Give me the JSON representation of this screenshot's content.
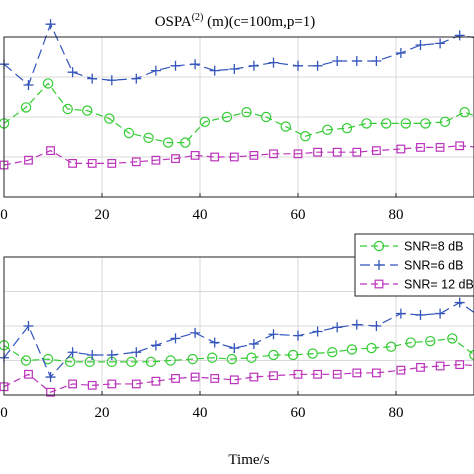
{
  "chart_data": [
    {
      "type": "line",
      "title_main": "OSPA",
      "title_sup": "(2)",
      "title_rest": " (m)(c=100m,p=1)",
      "xlim": [
        0,
        100
      ],
      "ylim": [
        0,
        10
      ],
      "grid": true,
      "x_ticks": [
        0,
        20,
        40,
        60,
        80
      ],
      "x_tick_labels": [
        "0",
        "20",
        "40",
        "60",
        "80"
      ],
      "series": [
        {
          "color": "#33cc33",
          "dash": "dashed",
          "marker": "circle",
          "x": [
            0,
            4.5,
            9,
            13,
            17,
            21.5,
            25.5,
            29.5,
            33.5,
            37,
            41,
            45.5,
            49.5,
            53.5,
            57.5,
            61.5,
            66,
            70,
            74,
            78,
            82,
            86,
            90,
            94,
            98.5
          ],
          "y": [
            4.6,
            5.6,
            7.1,
            5.5,
            5.4,
            4.9,
            4.0,
            3.7,
            3.4,
            3.4,
            4.7,
            5.0,
            5.3,
            5.0,
            4.4,
            3.8,
            4.2,
            4.3,
            4.6,
            4.6,
            4.6,
            4.6,
            4.7,
            5.3,
            4.8
          ]
        },
        {
          "color": "#3355bb",
          "dash": "longdash",
          "marker": "plus",
          "x": [
            0,
            5,
            9.5,
            14,
            18,
            22,
            27,
            31,
            35,
            39,
            43,
            47,
            51,
            55,
            60,
            64,
            68,
            72,
            76,
            81,
            85,
            89,
            93,
            97.5
          ],
          "y": [
            8.3,
            7.0,
            10.8,
            7.8,
            7.4,
            7.3,
            7.4,
            7.9,
            8.2,
            8.3,
            7.9,
            8.0,
            8.2,
            8.4,
            8.2,
            8.2,
            8.5,
            8.5,
            8.5,
            9.0,
            9.5,
            9.6,
            10.1,
            9.9
          ]
        },
        {
          "color": "#bb33bb",
          "dash": "dashed",
          "marker": "square",
          "x": [
            0,
            5,
            9.5,
            14,
            18,
            22,
            27,
            31,
            35,
            39,
            43,
            47,
            51,
            55,
            60,
            64,
            68,
            72,
            76,
            81,
            85,
            89,
            93,
            97.5
          ],
          "y": [
            2.0,
            2.3,
            2.9,
            2.1,
            2.1,
            2.1,
            2.2,
            2.3,
            2.4,
            2.6,
            2.5,
            2.5,
            2.6,
            2.7,
            2.7,
            2.8,
            2.8,
            2.8,
            2.9,
            3.0,
            3.1,
            3.1,
            3.2,
            3.1
          ]
        }
      ]
    },
    {
      "type": "line",
      "xlim": [
        0,
        100
      ],
      "ylim": [
        0,
        10
      ],
      "grid": true,
      "xlabel": "Time/s",
      "x_ticks": [
        0,
        20,
        40,
        60,
        80
      ],
      "x_tick_labels": [
        "0",
        "20",
        "40",
        "60",
        "80"
      ],
      "legend_position": "top-right",
      "series": [
        {
          "name": "SNR=8 dB",
          "color": "#33cc33",
          "dash": "dashed",
          "marker": "circle",
          "x": [
            0,
            4.5,
            9,
            13.5,
            17.5,
            22,
            26,
            30,
            34,
            38.5,
            42.5,
            46.5,
            50.5,
            55,
            59,
            63,
            67,
            71,
            75,
            79,
            83,
            87,
            91.5,
            96
          ],
          "y": [
            3.6,
            2.5,
            2.6,
            2.4,
            2.4,
            2.4,
            2.4,
            2.4,
            2.5,
            2.6,
            2.7,
            2.6,
            2.7,
            2.9,
            2.9,
            3.0,
            3.1,
            3.3,
            3.4,
            3.5,
            3.8,
            3.9,
            4.1,
            2.9
          ]
        },
        {
          "name": "SNR=6 dB",
          "color": "#3355bb",
          "dash": "longdash",
          "marker": "plus",
          "x": [
            0,
            5,
            9.5,
            14,
            18,
            22,
            27,
            31,
            35,
            39,
            43,
            47,
            51,
            55,
            60,
            64,
            68,
            72,
            76,
            81,
            85,
            89,
            93,
            97.5
          ],
          "y": [
            2.7,
            5.0,
            1.3,
            3.1,
            2.9,
            2.9,
            3.1,
            3.6,
            4.1,
            4.5,
            3.8,
            3.4,
            3.7,
            4.4,
            4.3,
            4.6,
            4.9,
            5.1,
            5.0,
            5.9,
            5.8,
            5.9,
            6.7,
            5.6
          ]
        },
        {
          "name": "SNR= 12 dB",
          "color": "#bb33bb",
          "dash": "dashed",
          "marker": "square",
          "x": [
            0,
            5,
            9.5,
            14,
            18,
            22,
            27,
            31,
            35,
            39,
            43,
            47,
            51,
            55,
            60,
            64,
            68,
            72,
            76,
            81,
            85,
            89,
            93,
            97.5
          ],
          "y": [
            0.6,
            1.5,
            0.2,
            0.8,
            0.7,
            0.8,
            0.8,
            1.0,
            1.2,
            1.3,
            1.2,
            1.1,
            1.3,
            1.4,
            1.5,
            1.5,
            1.5,
            1.6,
            1.6,
            1.8,
            2.0,
            2.1,
            2.2,
            2.1
          ]
        }
      ]
    }
  ]
}
